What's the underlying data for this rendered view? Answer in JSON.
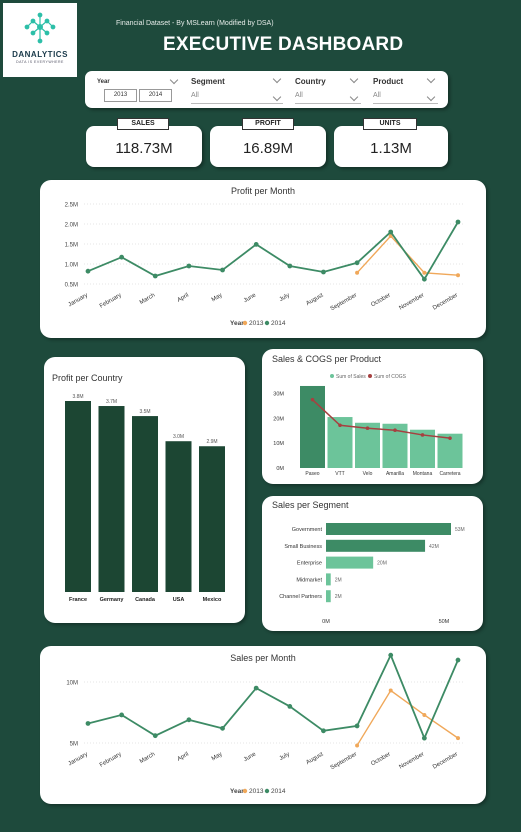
{
  "header": {
    "brand": "DANALYTICS",
    "tagline": "DATA IS EVERYWHERE",
    "subtitle": "Financial Dataset - By MSLearn (Modified by DSA)",
    "title": "EXECUTIVE DASHBOARD"
  },
  "filters": {
    "year": {
      "label": "Year",
      "options": [
        "2013",
        "2014"
      ]
    },
    "segment": {
      "label": "Segment",
      "value": "All"
    },
    "country": {
      "label": "Country",
      "value": "All"
    },
    "product": {
      "label": "Product",
      "value": "All"
    }
  },
  "kpis": [
    {
      "label": "SALES",
      "value": "118.73M"
    },
    {
      "label": "PROFIT",
      "value": "16.89M"
    },
    {
      "label": "UNITS",
      "value": "1.13M"
    }
  ],
  "colors": {
    "accent": "#3d8b65",
    "dark": "#1c4633",
    "orange": "#f0a85a",
    "cogs": "#a64040",
    "light_green": "#6cc49a",
    "bg": "#1e4a3c"
  },
  "chart_data": [
    {
      "id": "profit-month",
      "type": "line",
      "title": "Profit per Month",
      "categories": [
        "January",
        "February",
        "March",
        "April",
        "May",
        "June",
        "July",
        "August",
        "September",
        "October",
        "November",
        "December"
      ],
      "yticks": [
        "0.5M",
        "1.0M",
        "1.5M",
        "2.0M",
        "2.5M"
      ],
      "ylim": [
        0.5,
        2.5
      ],
      "legend_title": "Year",
      "series": [
        {
          "name": "2013",
          "values": [
            null,
            null,
            null,
            null,
            null,
            null,
            null,
            null,
            0.78,
            1.7,
            0.78,
            0.72
          ]
        },
        {
          "name": "2014",
          "values": [
            0.82,
            1.17,
            0.7,
            0.95,
            0.85,
            1.49,
            0.95,
            0.8,
            1.03,
            1.8,
            0.62,
            2.05
          ]
        }
      ]
    },
    {
      "id": "profit-country",
      "type": "bar",
      "title": "Profit per Country",
      "categories": [
        "France",
        "Germany",
        "Canada",
        "USA",
        "Mexico"
      ],
      "values": [
        3.8,
        3.7,
        3.5,
        3.0,
        2.9
      ],
      "labels": [
        "3.8M",
        "3.7M",
        "3.5M",
        "3.0M",
        "2.9M"
      ]
    },
    {
      "id": "sales-cogs",
      "type": "bar",
      "title": "Sales & COGS per Product",
      "categories": [
        "Paseo",
        "VTT",
        "Velo",
        "Amarilla",
        "Montana",
        "Carretera"
      ],
      "yticks": [
        "0M",
        "10M",
        "20M",
        "30M"
      ],
      "ylim": [
        0,
        35
      ],
      "series": [
        {
          "name": "Sum of  Sales",
          "values": [
            33,
            20.5,
            18.2,
            17.8,
            15.4,
            13.8
          ]
        },
        {
          "name": "Sum of COGS",
          "values": [
            27.5,
            17.2,
            16,
            15.2,
            13.3,
            12
          ]
        }
      ]
    },
    {
      "id": "sales-segment",
      "type": "bar",
      "title": "Sales per Segment",
      "categories": [
        "Government",
        "Small Business",
        "Enterprise",
        "Midmarket",
        "Channel Partners"
      ],
      "values": [
        53,
        42,
        20,
        2,
        2
      ],
      "labels": [
        "53M",
        "42M",
        "20M",
        "2M",
        "2M"
      ],
      "xticks": [
        "0M",
        "50M"
      ],
      "xlim": [
        0,
        53
      ]
    },
    {
      "id": "sales-month",
      "type": "line",
      "title": "Sales per Month",
      "categories": [
        "January",
        "February",
        "March",
        "April",
        "May",
        "June",
        "July",
        "August",
        "September",
        "October",
        "November",
        "December"
      ],
      "yticks": [
        "5M",
        "10M"
      ],
      "ylim": [
        5,
        10
      ],
      "legend_title": "Year",
      "series": [
        {
          "name": "2013",
          "values": [
            null,
            null,
            null,
            null,
            null,
            null,
            null,
            null,
            4.8,
            9.3,
            7.3,
            5.4
          ]
        },
        {
          "name": "2014",
          "values": [
            6.6,
            7.3,
            5.6,
            6.9,
            6.2,
            9.5,
            8.0,
            6.0,
            6.4,
            12.2,
            5.4,
            11.8
          ]
        }
      ]
    }
  ]
}
